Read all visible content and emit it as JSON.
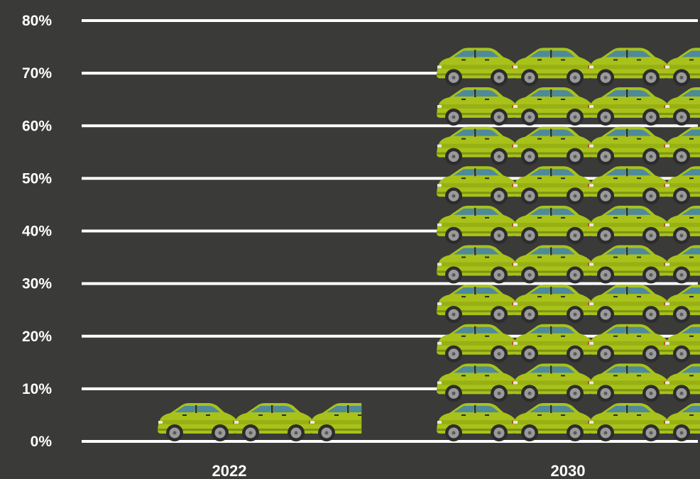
{
  "chart_data": {
    "type": "bar",
    "categories": [
      "2022",
      "2030"
    ],
    "values": [
      3.8,
      73.5
    ],
    "ylim": [
      0,
      80
    ],
    "y_ticks": [
      0,
      10,
      20,
      30,
      40,
      50,
      60,
      70,
      80
    ],
    "y_tick_labels": [
      "0%",
      "10%",
      "20%",
      "30%",
      "40%",
      "50%",
      "60%",
      "70%",
      "80%"
    ],
    "grid": true,
    "mark": "car pictogram",
    "cars_per_row": [
      2.5,
      3.5
    ],
    "colors": {
      "background": "#3a3a39",
      "grid": "#ffffff",
      "text": "#ffffff",
      "car_body": "#a8c21a",
      "car_window": "#4f8a9a"
    }
  }
}
